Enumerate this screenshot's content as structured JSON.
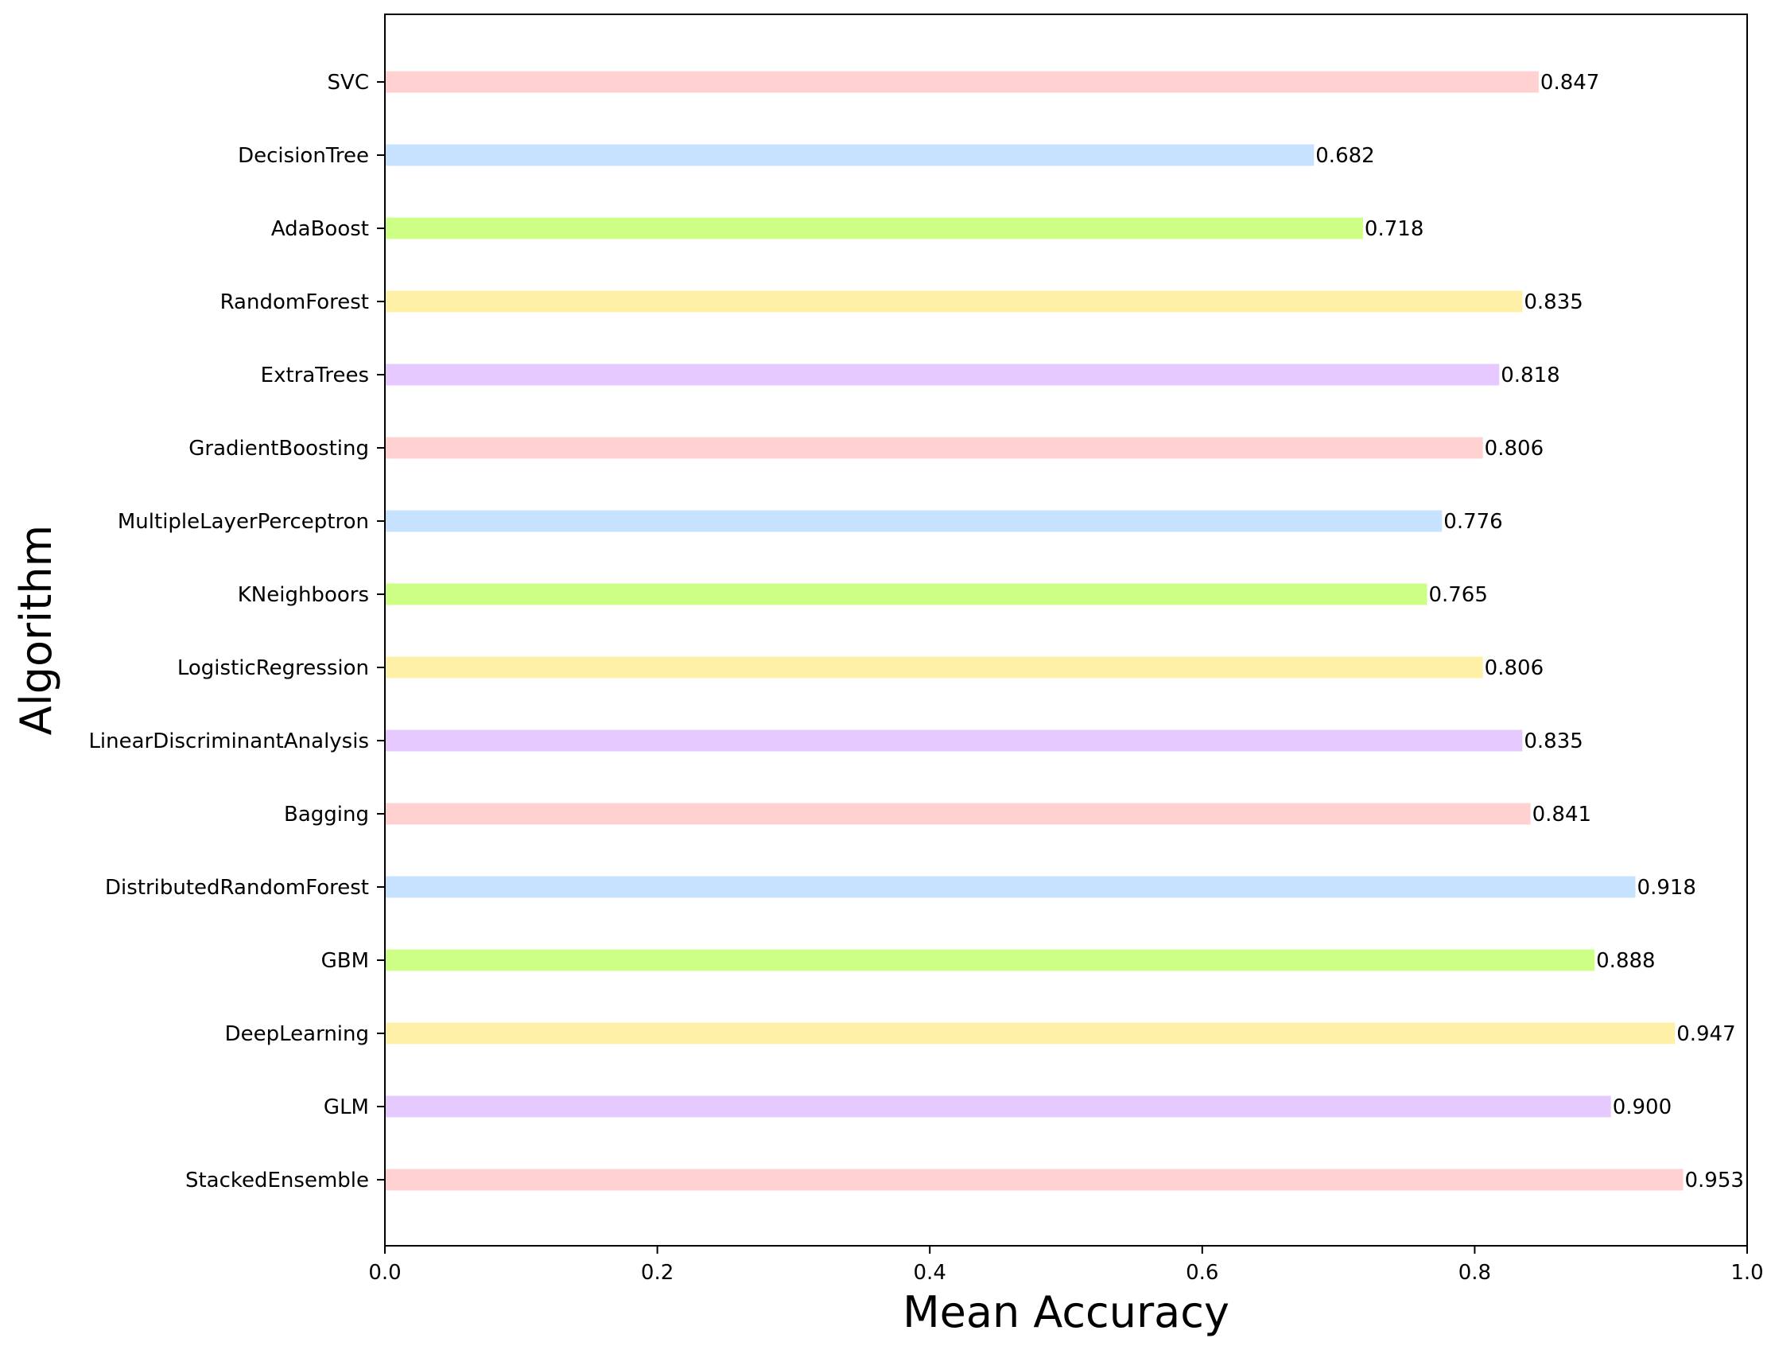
{
  "chart_data": {
    "type": "bar",
    "orientation": "horizontal",
    "title": "",
    "xlabel": "Mean Accuracy",
    "ylabel": "Algorithm",
    "xlim": [
      0.0,
      1.0
    ],
    "xticks": [
      "0.0",
      "0.2",
      "0.4",
      "0.6",
      "0.8",
      "1.0"
    ],
    "grid": false,
    "categories": [
      "SVC",
      "DecisionTree",
      "AdaBoost",
      "RandomForest",
      "ExtraTrees",
      "GradientBoosting",
      "MultipleLayerPerceptron",
      "KNeighboors",
      "LogisticRegression",
      "LinearDiscriminantAnalysis",
      "Bagging",
      "DistributedRandomForest",
      "GBM",
      "DeepLearning",
      "GLM",
      "StackedEnsemble"
    ],
    "values": [
      0.847,
      0.682,
      0.718,
      0.835,
      0.818,
      0.806,
      0.776,
      0.765,
      0.806,
      0.835,
      0.841,
      0.918,
      0.888,
      0.947,
      0.9,
      0.953
    ],
    "value_labels": [
      "0.847",
      "0.682",
      "0.718",
      "0.835",
      "0.818",
      "0.806",
      "0.776",
      "0.765",
      "0.806",
      "0.835",
      "0.841",
      "0.918",
      "0.888",
      "0.947",
      "0.900",
      "0.953"
    ],
    "colors": [
      "#ffd1d1",
      "#c6e2ff",
      "#ccff84",
      "#fff0a8",
      "#e6c9ff",
      "#ffd1d1",
      "#c6e2ff",
      "#ccff84",
      "#fff0a8",
      "#e6c9ff",
      "#ffd1d1",
      "#c6e2ff",
      "#ccff84",
      "#fff0a8",
      "#e6c9ff",
      "#ffd1d1"
    ]
  }
}
